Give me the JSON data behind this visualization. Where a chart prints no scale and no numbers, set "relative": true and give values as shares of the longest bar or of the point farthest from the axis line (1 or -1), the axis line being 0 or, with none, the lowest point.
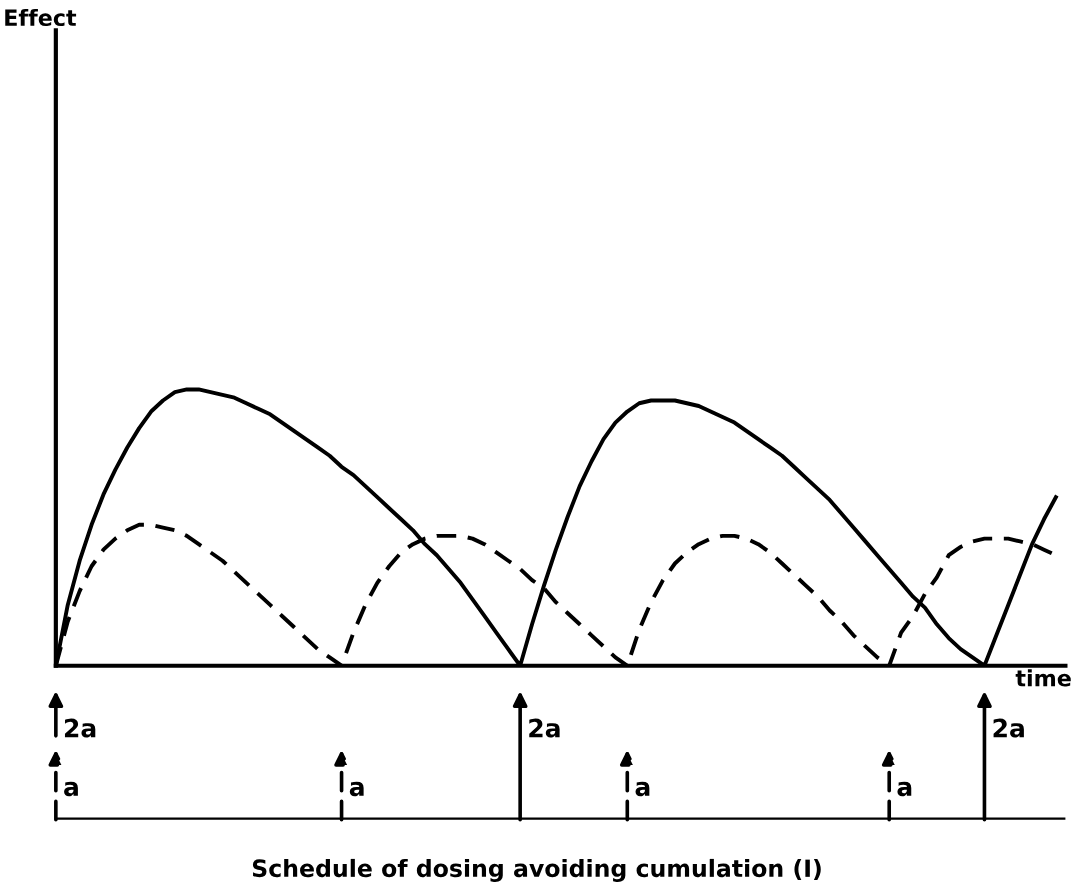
{
  "chart_data": {
    "type": "line",
    "relative": true,
    "xlabel": "time",
    "categories": [
      null,
      null,
      null,
      null,
      null,
      null,
      null,
      null,
      null,
      null,
      null,
      null,
      null,
      null,
      null,
      null,
      null,
      null,
      null,
      null,
      null,
      null,
      null,
      null,
      null,
      null,
      null,
      null,
      null,
      null,
      null,
      null,
      null,
      null,
      null,
      null,
      null,
      null,
      null,
      null,
      null,
      null,
      null,
      null,
      null,
      null,
      null,
      null,
      null,
      null,
      null,
      null,
      null,
      null,
      null,
      null,
      null,
      null,
      null,
      null,
      null,
      null,
      null,
      null,
      null,
      null,
      null,
      null,
      null,
      null,
      null,
      null,
      null,
      null,
      null,
      null,
      null,
      null,
      null,
      null,
      null,
      null,
      null,
      null,
      null
    ],
    "series": [
      {
        "color": "#000000",
        "line_style": "solid",
        "values": [
          0,
          0.22,
          0.38,
          0.51,
          0.62,
          0.71,
          0.79,
          0.86,
          0.92,
          0.96,
          0.99,
          1.0,
          1.0,
          0.99,
          0.98,
          0.97,
          0.95,
          0.93,
          0.91,
          0.88,
          0.85,
          0.82,
          0.79,
          0.76,
          0.72,
          0.69,
          0.65,
          0.61,
          0.57,
          0.53,
          0.49,
          0.44,
          0.4,
          0.35,
          0.3,
          0.24,
          0.18,
          0.12,
          0.06,
          0,
          0.15,
          0.29,
          0.42,
          0.54,
          0.65,
          0.74,
          0.82,
          0.88,
          0.92,
          0.95,
          0.96,
          0.96,
          0.96,
          0.95,
          0.94,
          0.92,
          0.9,
          0.88,
          0.85,
          0.82,
          0.79,
          0.76,
          0.72,
          0.68,
          0.64,
          0.6,
          0.55,
          0.5,
          0.45,
          0.4,
          0.35,
          0.3,
          0.25,
          0.21,
          0.15,
          0.1,
          0.06,
          0.03,
          0,
          0.11,
          0.22,
          0.33,
          0.44,
          0.53,
          0.61
        ]
      },
      {
        "color": "#000000",
        "line_style": "dashed",
        "values": [
          0,
          0.16,
          0.27,
          0.36,
          0.42,
          0.46,
          0.49,
          0.51,
          0.51,
          0.5,
          0.49,
          0.47,
          0.44,
          0.41,
          0.38,
          0.34,
          0.3,
          0.26,
          0.22,
          0.18,
          0.14,
          0.1,
          0.06,
          0.03,
          0,
          0.12,
          0.22,
          0.3,
          0.36,
          0.41,
          0.44,
          0.46,
          0.47,
          0.47,
          0.47,
          0.46,
          0.44,
          0.41,
          0.38,
          0.35,
          0.31,
          0.28,
          0.23,
          0.19,
          0.15,
          0.11,
          0.07,
          0.03,
          0,
          0.13,
          0.23,
          0.31,
          0.37,
          0.41,
          0.44,
          0.46,
          0.47,
          0.47,
          0.46,
          0.44,
          0.41,
          0.37,
          0.33,
          0.29,
          0.25,
          0.2,
          0.16,
          0.11,
          0.07,
          0.03,
          0,
          0.12,
          0.18,
          0.26,
          0.32,
          0.4,
          0.43,
          0.45,
          0.46,
          0.46,
          0.46,
          0.45,
          0.44,
          0.42,
          0.4
        ]
      }
    ],
    "annotations": [
      "Effect",
      "2a",
      "2a",
      "2a",
      "a",
      "a",
      "a",
      "a",
      "Schedule of dosing avoiding cumulation (I)"
    ]
  }
}
